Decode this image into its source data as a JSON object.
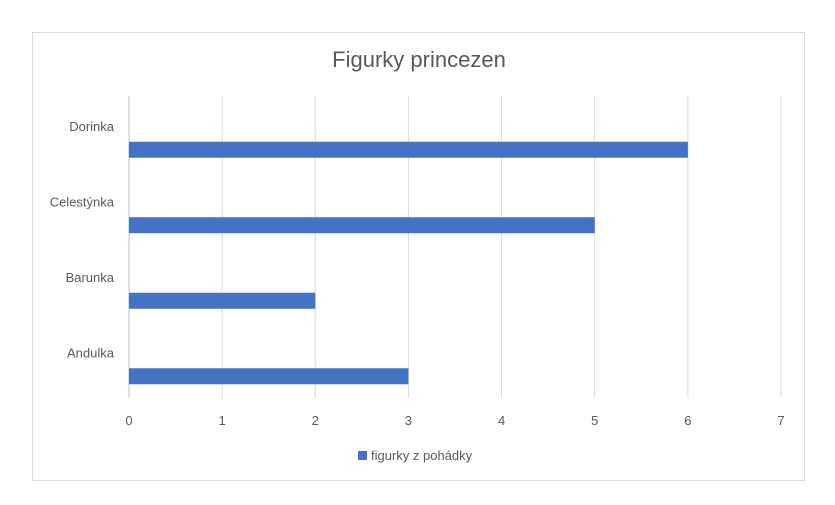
{
  "chart_data": {
    "type": "bar",
    "orientation": "horizontal",
    "title": "Figurky princezen",
    "categories": [
      "Andulka",
      "Barunka",
      "Celestýnka",
      "Dorinka"
    ],
    "series": [
      {
        "name": "figurky z pohádky",
        "values": [
          3,
          2,
          5,
          6
        ],
        "color": "#4472c4"
      }
    ],
    "xlim": [
      0,
      7
    ],
    "x_ticks": [
      "0",
      "1",
      "2",
      "3",
      "4",
      "5",
      "6",
      "7"
    ],
    "grid": "vertical",
    "legend": "bottom"
  }
}
